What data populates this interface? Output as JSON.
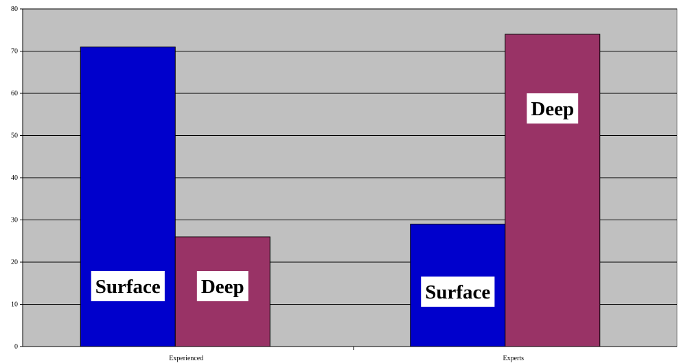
{
  "chart_data": {
    "type": "bar",
    "categories": [
      "Experienced",
      "Experts"
    ],
    "series": [
      {
        "key": "surface",
        "values": [
          71,
          29
        ]
      },
      {
        "key": "deep",
        "values": [
          26,
          74
        ]
      }
    ],
    "bar_labels": {
      "surface": "Surface",
      "deep": "Deep"
    },
    "ylim": [
      0,
      80
    ],
    "yticks": [
      0,
      10,
      20,
      30,
      40,
      50,
      60,
      70,
      80
    ],
    "grid": true,
    "legend": "none",
    "colors": {
      "surface": "#0000CC",
      "deep": "#993366",
      "plot_bg": "#C0C0C0",
      "page_bg": "#FFFFFF"
    }
  }
}
